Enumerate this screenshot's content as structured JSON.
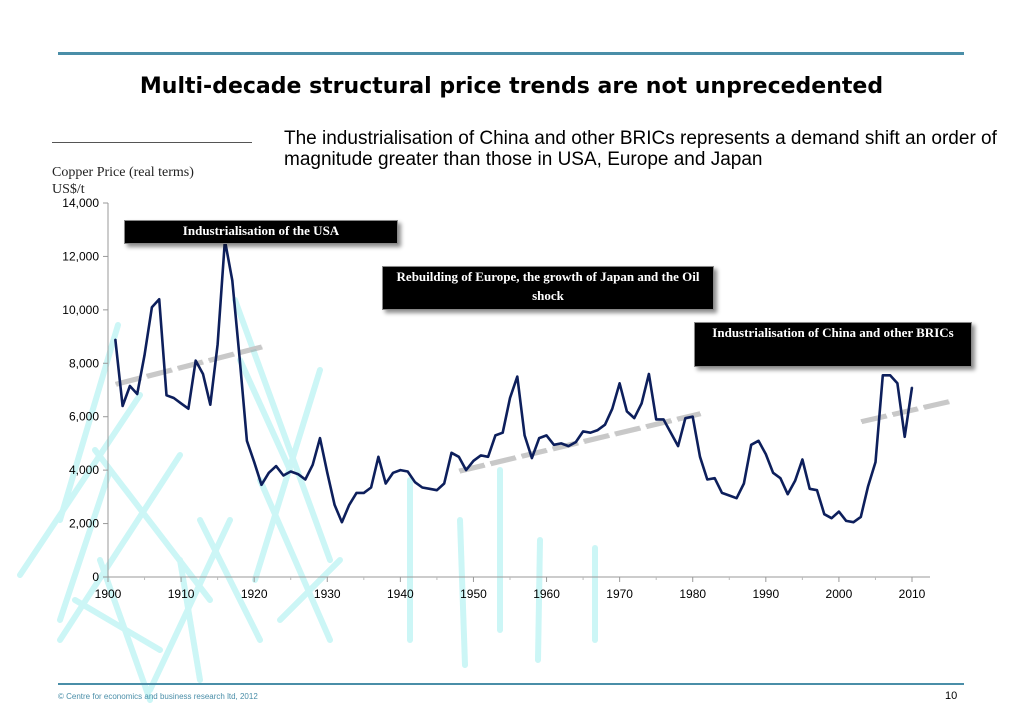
{
  "slide": {
    "title": "Multi-decade structural price trends are not unprecedented",
    "description": "The industrialisation of China and other BRICs represents a demand shift an order of magnitude greater than those in USA, Europe and Japan",
    "footer": "© Centre for economics and business research ltd, 2012",
    "page_number": "10"
  },
  "chart_data": {
    "type": "line",
    "title": "Copper Price (real terms)",
    "ylabel": "US$/t",
    "xlabel": "",
    "xlim": [
      1900,
      2010
    ],
    "ylim": [
      0,
      14000
    ],
    "x_ticks": [
      "1900",
      "1910",
      "1920",
      "1930",
      "1940",
      "1950",
      "1960",
      "1970",
      "1980",
      "1990",
      "2000",
      "2010"
    ],
    "y_ticks": [
      "0",
      "2,000",
      "4,000",
      "6,000",
      "8,000",
      "10,000",
      "12,000",
      "14,000"
    ],
    "grid": false,
    "line_color": "#0d1f5c",
    "trend_color": "#c8c8c8",
    "series": [
      {
        "x": [
          1901,
          1902,
          1903,
          1904,
          1905,
          1906,
          1907,
          1908,
          1909,
          1910,
          1911,
          1912,
          1913,
          1914,
          1915,
          1916,
          1917,
          1918,
          1919,
          1920,
          1921,
          1922,
          1923,
          1924,
          1925,
          1926,
          1927,
          1928,
          1929,
          1930,
          1931,
          1932,
          1933,
          1934,
          1935,
          1936,
          1937,
          1938,
          1939,
          1940,
          1941,
          1942,
          1943,
          1944,
          1945,
          1946,
          1947,
          1948,
          1949,
          1950,
          1951,
          1952,
          1953,
          1954,
          1955,
          1956,
          1957,
          1958,
          1959,
          1960,
          1961,
          1962,
          1963,
          1964,
          1965,
          1966,
          1967,
          1968,
          1969,
          1970,
          1971,
          1972,
          1973,
          1974,
          1975,
          1976,
          1977,
          1978,
          1979,
          1980,
          1981,
          1982,
          1983,
          1984,
          1985,
          1986,
          1987,
          1988,
          1989,
          1990,
          1991,
          1992,
          1993,
          1994,
          1995,
          1996,
          1997,
          1998,
          1999,
          2000,
          2001,
          2002,
          2003,
          2004,
          2005,
          2006,
          2007,
          2008,
          2009,
          2010
        ],
        "values": [
          8900,
          6400,
          7150,
          6850,
          8300,
          10100,
          10400,
          6800,
          6700,
          6500,
          6300,
          8100,
          7600,
          6450,
          8700,
          12600,
          11100,
          8200,
          5100,
          4300,
          3450,
          3900,
          4150,
          3800,
          3950,
          3850,
          3650,
          4200,
          5200,
          3900,
          2700,
          2050,
          2700,
          3150,
          3150,
          3350,
          4500,
          3500,
          3900,
          4000,
          3950,
          3550,
          3350,
          3300,
          3250,
          3500,
          4650,
          4500,
          4000,
          4350,
          4550,
          4500,
          5300,
          5400,
          6700,
          7500,
          5300,
          4450,
          5200,
          5300,
          4950,
          5000,
          4900,
          5050,
          5450,
          5400,
          5500,
          5700,
          6300,
          7250,
          6200,
          5950,
          6500,
          7600,
          5900,
          5900,
          5400,
          4900,
          5950,
          6000,
          4500,
          3650,
          3700,
          3150,
          3050,
          2950,
          3500,
          4950,
          5100,
          4600,
          3900,
          3700,
          3100,
          3600,
          4400,
          3300,
          3250,
          2350,
          2200,
          2450,
          2100,
          2050,
          2250,
          3400,
          4300,
          7550,
          7550,
          7250,
          5250,
          7100
        ]
      }
    ],
    "trend_lines": [
      {
        "x": [
          1901,
          1921
        ],
        "values": [
          7250,
          8650
        ]
      },
      {
        "x": [
          1948,
          1981
        ],
        "values": [
          4000,
          6150
        ]
      },
      {
        "x": [
          2003,
          2015
        ],
        "values": [
          5850,
          6600
        ]
      }
    ],
    "annotations": [
      {
        "text": "Industrialisation of the USA"
      },
      {
        "text": "Rebuilding of Europe, the growth of Japan and the Oil shock"
      },
      {
        "text": "Industrialisation of China and other BRICs"
      }
    ],
    "decoration": "light-cyan hatch strokes"
  }
}
